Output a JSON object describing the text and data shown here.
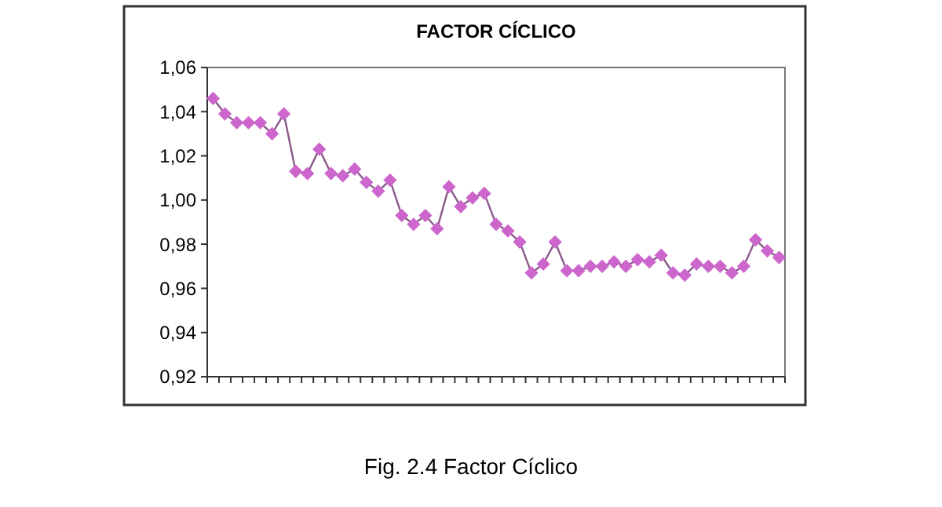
{
  "chart_data": {
    "type": "line",
    "title": "FACTOR CÍCLICO",
    "annotations": [
      "Fig. 2.4 Factor Cíclico"
    ],
    "categories": [
      null,
      null,
      null,
      null,
      null,
      null,
      null,
      null,
      null,
      null,
      null,
      null,
      null,
      null,
      null,
      null,
      null,
      null,
      null,
      null,
      null,
      null,
      null,
      null,
      null,
      null,
      null,
      null,
      null,
      null,
      null,
      null,
      null,
      null,
      null,
      null,
      null,
      null,
      null,
      null,
      null,
      null,
      null,
      null,
      null,
      null,
      null,
      null,
      null
    ],
    "series": [
      {
        "color": "#cc66cc",
        "values": [
          1.046,
          1.039,
          1.035,
          1.035,
          1.035,
          1.03,
          1.039,
          1.013,
          1.012,
          1.023,
          1.012,
          1.011,
          1.014,
          1.008,
          1.004,
          1.009,
          0.993,
          0.989,
          0.993,
          0.987,
          1.006,
          0.997,
          1.001,
          1.003,
          0.989,
          0.986,
          0.981,
          0.967,
          0.971,
          0.981,
          0.968,
          0.968,
          0.97,
          0.97,
          0.972,
          0.97,
          0.973,
          0.972,
          0.975,
          0.967,
          0.966,
          0.971,
          0.97,
          0.97,
          0.967,
          0.97,
          0.982,
          0.977,
          0.974
        ]
      }
    ],
    "ylim": [
      0.92,
      1.06
    ],
    "yticks": [
      {
        "value": 0.92,
        "label": "0,92"
      },
      {
        "value": 0.94,
        "label": "0,94"
      },
      {
        "value": 0.96,
        "label": "0,96"
      },
      {
        "value": 0.98,
        "label": "0,98"
      },
      {
        "value": 1.0,
        "label": "1,00"
      },
      {
        "value": 1.02,
        "label": "1,02"
      },
      {
        "value": 1.04,
        "label": "1,04"
      },
      {
        "value": 1.06,
        "label": "1,06"
      }
    ],
    "grid": false,
    "marker": "diamond",
    "line_style": "solid"
  }
}
